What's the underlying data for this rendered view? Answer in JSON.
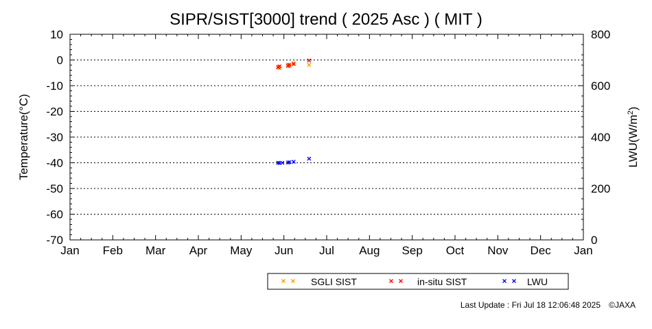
{
  "chart_data": {
    "type": "scatter",
    "title": "SIPR/SIST[3000] trend ( 2025 Asc ) ( MIT )",
    "xlabel": "",
    "ylabel": "Temperature(°C)",
    "y2label": "LWU(W/m²)",
    "x_tick_labels": [
      "Jan",
      "Feb",
      "Mar",
      "Apr",
      "May",
      "Jun",
      "Jul",
      "Aug",
      "Sep",
      "Oct",
      "Nov",
      "Dec",
      "Jan"
    ],
    "xlim": [
      "2025-01-01",
      "2026-01-01"
    ],
    "ylim": [
      -70,
      10
    ],
    "y_ticks": [
      10,
      0,
      -10,
      -20,
      -30,
      -40,
      -50,
      -60,
      -70
    ],
    "y2lim": [
      0,
      800
    ],
    "y2_ticks": [
      800,
      600,
      400,
      200,
      0
    ],
    "grid": "horizontal dotted",
    "legend_position": "bottom",
    "series": [
      {
        "name": "SGLI SIST",
        "axis": "left",
        "color": "#ff9900",
        "marker": "x",
        "points": [
          [
            "2025-05-29",
            -2.6
          ],
          [
            "2025-05-30",
            -3.2
          ],
          [
            "2025-06-05",
            -1.8
          ],
          [
            "2025-06-06",
            -2.4
          ],
          [
            "2025-06-09",
            -1.2
          ],
          [
            "2025-06-20",
            -1.9
          ]
        ]
      },
      {
        "name": "in-situ SIST",
        "axis": "left",
        "color": "#ff0000",
        "marker": "x",
        "points": [
          [
            "2025-05-29",
            -2.9
          ],
          [
            "2025-05-30",
            -2.5
          ],
          [
            "2025-06-05",
            -2.3
          ],
          [
            "2025-06-06",
            -1.9
          ],
          [
            "2025-06-09",
            -1.6
          ],
          [
            "2025-06-20",
            -0.2
          ]
        ]
      },
      {
        "name": "LWU",
        "axis": "right",
        "color": "#0000ff",
        "marker": "x",
        "points": [
          [
            "2025-05-29",
            300
          ],
          [
            "2025-05-30",
            299
          ],
          [
            "2025-06-01",
            300
          ],
          [
            "2025-06-05",
            301
          ],
          [
            "2025-06-06",
            302
          ],
          [
            "2025-06-09",
            304
          ],
          [
            "2025-06-20",
            316
          ]
        ]
      }
    ]
  },
  "footer": {
    "last_update": "Last Update : Fri Jul 18 12:06:48 2025",
    "copyright": "©JAXA"
  }
}
